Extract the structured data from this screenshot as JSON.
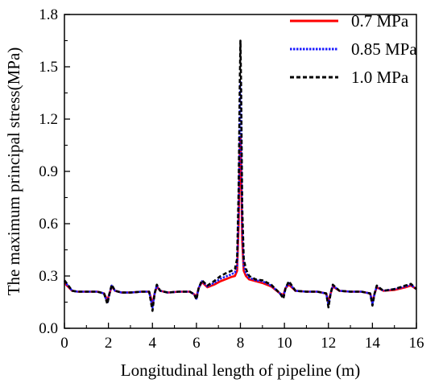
{
  "chart_data": {
    "type": "line",
    "title": "",
    "xlabel": "Longitudinal length of pipeline (m)",
    "ylabel": "The maximum principal stress(MPa)",
    "xlim": [
      0,
      16
    ],
    "ylim": [
      0,
      1.8
    ],
    "xticks": [
      0,
      2,
      4,
      6,
      8,
      10,
      12,
      14,
      16
    ],
    "yticks": [
      0.0,
      0.3,
      0.6,
      0.9,
      1.2,
      1.5,
      1.8
    ],
    "xtick_labels": [
      "0",
      "2",
      "4",
      "6",
      "8",
      "10",
      "12",
      "14",
      "16"
    ],
    "ytick_labels": [
      "0.0",
      "0.3",
      "0.6",
      "0.9",
      "1.2",
      "1.5",
      "1.8"
    ],
    "grid": false,
    "legend_position": "top-right",
    "series": [
      {
        "name": "0.7 MPa",
        "color": "#ff0000",
        "style": "solid",
        "x": [
          0,
          0.15,
          0.35,
          0.6,
          1.0,
          1.5,
          1.8,
          1.95,
          2.05,
          2.15,
          2.3,
          2.6,
          3.0,
          3.5,
          3.85,
          4.0,
          4.1,
          4.2,
          4.35,
          4.7,
          5.2,
          5.7,
          5.9,
          6.0,
          6.1,
          6.25,
          6.5,
          6.8,
          7.1,
          7.4,
          7.6,
          7.75,
          7.85,
          7.92,
          7.97,
          8.0,
          8.03,
          8.08,
          8.15,
          8.25,
          8.4,
          8.7,
          9.0,
          9.4,
          9.8,
          9.95,
          10.05,
          10.2,
          10.5,
          11.0,
          11.5,
          11.9,
          12.0,
          12.1,
          12.2,
          12.5,
          13.0,
          13.5,
          13.9,
          14.0,
          14.1,
          14.2,
          14.5,
          15.0,
          15.5,
          15.75,
          16.0
        ],
        "y": [
          0.26,
          0.24,
          0.215,
          0.21,
          0.21,
          0.21,
          0.2,
          0.16,
          0.2,
          0.24,
          0.215,
          0.205,
          0.205,
          0.21,
          0.21,
          0.14,
          0.2,
          0.24,
          0.215,
          0.205,
          0.21,
          0.21,
          0.195,
          0.18,
          0.23,
          0.265,
          0.235,
          0.25,
          0.27,
          0.285,
          0.295,
          0.3,
          0.33,
          0.6,
          1.0,
          1.1,
          0.95,
          0.5,
          0.33,
          0.3,
          0.28,
          0.27,
          0.26,
          0.24,
          0.2,
          0.19,
          0.23,
          0.25,
          0.215,
          0.21,
          0.21,
          0.2,
          0.15,
          0.2,
          0.24,
          0.215,
          0.21,
          0.21,
          0.2,
          0.15,
          0.2,
          0.235,
          0.215,
          0.22,
          0.235,
          0.245,
          0.225
        ]
      },
      {
        "name": "0.85 MPa",
        "color": "#1a1aff",
        "style": "dotted",
        "x": [
          0,
          0.15,
          0.35,
          0.6,
          1.0,
          1.5,
          1.8,
          1.95,
          2.05,
          2.15,
          2.3,
          2.6,
          3.0,
          3.5,
          3.85,
          4.0,
          4.1,
          4.2,
          4.35,
          4.7,
          5.2,
          5.7,
          5.9,
          6.0,
          6.1,
          6.25,
          6.5,
          6.8,
          7.1,
          7.4,
          7.6,
          7.75,
          7.85,
          7.92,
          7.97,
          8.0,
          8.03,
          8.08,
          8.15,
          8.25,
          8.4,
          8.7,
          9.0,
          9.4,
          9.8,
          9.95,
          10.05,
          10.2,
          10.5,
          11.0,
          11.5,
          11.9,
          12.0,
          12.1,
          12.2,
          12.5,
          13.0,
          13.5,
          13.9,
          14.0,
          14.1,
          14.2,
          14.5,
          15.0,
          15.5,
          15.75,
          16.0
        ],
        "y": [
          0.27,
          0.245,
          0.215,
          0.21,
          0.21,
          0.21,
          0.2,
          0.145,
          0.2,
          0.245,
          0.215,
          0.205,
          0.205,
          0.21,
          0.21,
          0.12,
          0.2,
          0.245,
          0.215,
          0.205,
          0.21,
          0.21,
          0.195,
          0.17,
          0.23,
          0.27,
          0.24,
          0.26,
          0.285,
          0.3,
          0.31,
          0.32,
          0.36,
          0.7,
          1.2,
          1.42,
          1.2,
          0.6,
          0.36,
          0.32,
          0.29,
          0.275,
          0.27,
          0.245,
          0.2,
          0.18,
          0.23,
          0.26,
          0.215,
          0.21,
          0.21,
          0.2,
          0.135,
          0.2,
          0.245,
          0.215,
          0.21,
          0.21,
          0.2,
          0.14,
          0.2,
          0.24,
          0.215,
          0.225,
          0.24,
          0.25,
          0.225
        ]
      },
      {
        "name": "1.0 MPa",
        "color": "#000000",
        "style": "dashed",
        "x": [
          0,
          0.15,
          0.35,
          0.6,
          1.0,
          1.5,
          1.8,
          1.95,
          2.05,
          2.15,
          2.3,
          2.6,
          3.0,
          3.5,
          3.85,
          4.0,
          4.1,
          4.2,
          4.35,
          4.7,
          5.2,
          5.7,
          5.9,
          6.0,
          6.1,
          6.25,
          6.5,
          6.8,
          7.1,
          7.4,
          7.6,
          7.75,
          7.85,
          7.92,
          7.97,
          8.0,
          8.03,
          8.08,
          8.15,
          8.25,
          8.4,
          8.7,
          9.0,
          9.4,
          9.8,
          9.95,
          10.05,
          10.2,
          10.5,
          11.0,
          11.5,
          11.9,
          12.0,
          12.1,
          12.2,
          12.5,
          13.0,
          13.5,
          13.9,
          14.0,
          14.1,
          14.2,
          14.5,
          15.0,
          15.5,
          15.75,
          16.0
        ],
        "y": [
          0.275,
          0.25,
          0.215,
          0.21,
          0.21,
          0.21,
          0.2,
          0.14,
          0.2,
          0.25,
          0.215,
          0.205,
          0.205,
          0.21,
          0.21,
          0.1,
          0.2,
          0.25,
          0.215,
          0.205,
          0.21,
          0.21,
          0.195,
          0.165,
          0.23,
          0.275,
          0.245,
          0.27,
          0.3,
          0.32,
          0.33,
          0.34,
          0.4,
          0.8,
          1.4,
          1.65,
          1.4,
          0.7,
          0.4,
          0.34,
          0.3,
          0.28,
          0.275,
          0.25,
          0.2,
          0.17,
          0.23,
          0.27,
          0.215,
          0.21,
          0.21,
          0.2,
          0.12,
          0.2,
          0.25,
          0.215,
          0.21,
          0.21,
          0.2,
          0.13,
          0.2,
          0.245,
          0.215,
          0.225,
          0.245,
          0.255,
          0.225
        ]
      }
    ]
  }
}
